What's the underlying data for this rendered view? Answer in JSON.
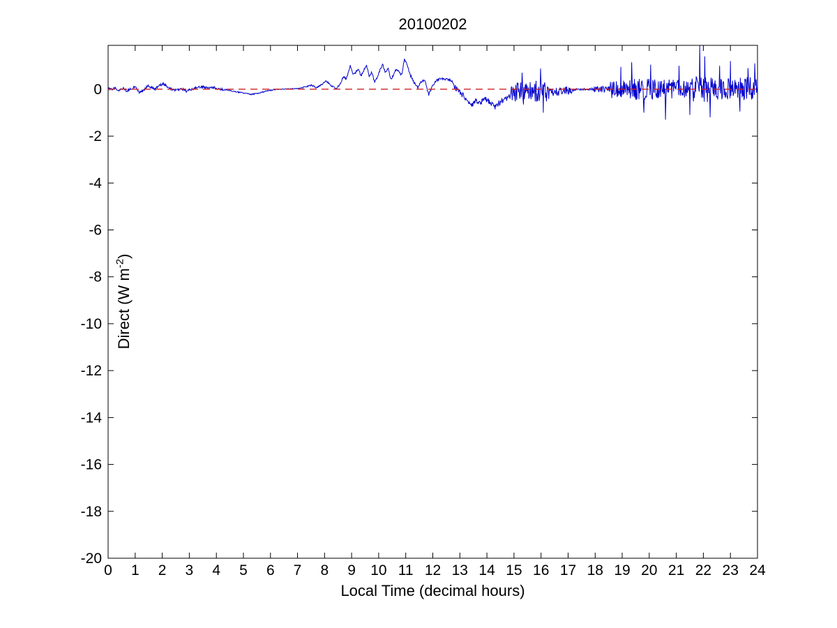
{
  "figure": {
    "background": "#ffffff"
  },
  "chart_data": {
    "type": "line",
    "title": "20100202",
    "xlabel": "Local Time (decimal hours)",
    "ylabel": "Direct (W m^-2)",
    "ylabel_parts": {
      "prefix": "Direct (W m",
      "superscript": "-2",
      "suffix": ")"
    },
    "xlim": [
      0,
      24
    ],
    "ylim": [
      -20,
      1.87
    ],
    "xticks": [
      0,
      1,
      2,
      3,
      4,
      5,
      6,
      7,
      8,
      9,
      10,
      11,
      12,
      13,
      14,
      15,
      16,
      17,
      18,
      19,
      20,
      21,
      22,
      23,
      24
    ],
    "yticks": [
      0,
      -2,
      -4,
      -6,
      -8,
      -10,
      -12,
      -14,
      -16,
      -18,
      -20
    ],
    "grid": false,
    "axis_color": "#000000",
    "background_color": "#ffffff",
    "series": [
      {
        "name": "direct-irradiance",
        "color": "#0000CC",
        "style": "solid",
        "samples_per_hour": 60,
        "noise_seed": 20100202,
        "baseline_anchors": [
          [
            0,
            0.05
          ],
          [
            0.1,
            -0.02
          ],
          [
            0.25,
            0.06
          ],
          [
            0.4,
            -0.06
          ],
          [
            0.55,
            0.04
          ],
          [
            0.7,
            -0.08
          ],
          [
            0.85,
            0.02
          ],
          [
            1,
            0.12
          ],
          [
            1.15,
            -0.12
          ],
          [
            1.3,
            -0.08
          ],
          [
            1.45,
            0.15
          ],
          [
            1.6,
            0.08
          ],
          [
            1.75,
            0.02
          ],
          [
            1.9,
            0.18
          ],
          [
            2.05,
            0.22
          ],
          [
            2.2,
            0.1
          ],
          [
            2.35,
            0
          ],
          [
            2.5,
            -0.05
          ],
          [
            2.7,
            0.02
          ],
          [
            2.9,
            -0.08
          ],
          [
            3.1,
            0
          ],
          [
            3.3,
            0.08
          ],
          [
            3.5,
            0.1
          ],
          [
            3.7,
            0.04
          ],
          [
            3.9,
            0.08
          ],
          [
            4.1,
            0
          ],
          [
            4.4,
            -0.03
          ],
          [
            4.7,
            -0.1
          ],
          [
            5,
            -0.16
          ],
          [
            5.3,
            -0.22
          ],
          [
            5.6,
            -0.16
          ],
          [
            5.9,
            -0.06
          ],
          [
            6.2,
            -0.01
          ],
          [
            6.6,
            0.01
          ],
          [
            7,
            0.03
          ],
          [
            7.3,
            0.1
          ],
          [
            7.5,
            0.17
          ],
          [
            7.7,
            0.07
          ],
          [
            7.9,
            0.2
          ],
          [
            8.05,
            0.37
          ],
          [
            8.25,
            0.14
          ],
          [
            8.45,
            0.02
          ],
          [
            8.6,
            0.3
          ],
          [
            8.7,
            0.55
          ],
          [
            8.8,
            0.42
          ],
          [
            8.95,
            1
          ],
          [
            9.05,
            0.6
          ],
          [
            9.15,
            0.72
          ],
          [
            9.25,
            0.88
          ],
          [
            9.35,
            0.55
          ],
          [
            9.45,
            0.8
          ],
          [
            9.55,
            1.02
          ],
          [
            9.65,
            0.55
          ],
          [
            9.75,
            0.72
          ],
          [
            9.85,
            0.3
          ],
          [
            9.95,
            0.5
          ],
          [
            10.05,
            0.82
          ],
          [
            10.15,
            1.05
          ],
          [
            10.25,
            0.68
          ],
          [
            10.35,
            0.92
          ],
          [
            10.45,
            0.42
          ],
          [
            10.55,
            0.6
          ],
          [
            10.65,
            0.88
          ],
          [
            10.75,
            0.72
          ],
          [
            10.85,
            0.6
          ],
          [
            10.95,
            1.3
          ],
          [
            11.05,
            1.05
          ],
          [
            11.15,
            0.65
          ],
          [
            11.3,
            0.3
          ],
          [
            11.45,
            0.05
          ],
          [
            11.55,
            0.3
          ],
          [
            11.7,
            0.4
          ],
          [
            11.85,
            -0.25
          ],
          [
            11.95,
            0.05
          ],
          [
            12.1,
            0.35
          ],
          [
            12.3,
            0.45
          ],
          [
            12.5,
            0.42
          ],
          [
            12.7,
            0.35
          ],
          [
            12.85,
            0.05
          ],
          [
            13,
            -0.15
          ],
          [
            13.15,
            -0.3
          ],
          [
            13.3,
            -0.5
          ],
          [
            13.45,
            -0.65
          ],
          [
            13.6,
            -0.45
          ],
          [
            13.75,
            -0.6
          ],
          [
            13.9,
            -0.4
          ],
          [
            14.1,
            -0.55
          ],
          [
            14.3,
            -0.75
          ],
          [
            14.5,
            -0.55
          ],
          [
            14.7,
            -0.4
          ],
          [
            14.9,
            -0.25
          ],
          [
            15.1,
            -0.1
          ],
          [
            15.5,
            -0.05
          ],
          [
            16,
            -0.05
          ],
          [
            16.5,
            -0.12
          ],
          [
            17,
            -0.05
          ],
          [
            17.5,
            0
          ],
          [
            18,
            0
          ],
          [
            19,
            0
          ],
          [
            20,
            0
          ],
          [
            21,
            0
          ],
          [
            22,
            0
          ],
          [
            23,
            0
          ],
          [
            23.9,
            0.05
          ],
          [
            24,
            0.3
          ]
        ],
        "noise_segments": [
          [
            0,
            4.3,
            0.05
          ],
          [
            4.3,
            6.2,
            0.025
          ],
          [
            6.2,
            7.2,
            0.015
          ],
          [
            7.2,
            8.5,
            0.03
          ],
          [
            8.5,
            12.8,
            0.05
          ],
          [
            12.8,
            14.9,
            0.12
          ],
          [
            14.9,
            15.75,
            0.4
          ],
          [
            15.75,
            16.35,
            0.5
          ],
          [
            16.35,
            17.15,
            0.18
          ],
          [
            17.15,
            17.95,
            0.05
          ],
          [
            17.95,
            18.55,
            0.13
          ],
          [
            18.55,
            19.3,
            0.4
          ],
          [
            19.3,
            20.4,
            0.45
          ],
          [
            20.4,
            21.35,
            0.42
          ],
          [
            21.35,
            22.4,
            0.55
          ],
          [
            22.4,
            23.3,
            0.45
          ],
          [
            23.3,
            24.01,
            0.5
          ]
        ],
        "spikes": [
          [
            15.3,
            0.7
          ],
          [
            15.35,
            -0.65
          ],
          [
            15.98,
            0.88
          ],
          [
            16.08,
            -1
          ],
          [
            18.95,
            0.95
          ],
          [
            19.35,
            1.15
          ],
          [
            19.8,
            -1
          ],
          [
            20.05,
            1.05
          ],
          [
            20.6,
            -1.3
          ],
          [
            21.1,
            1
          ],
          [
            21.5,
            -1.1
          ],
          [
            21.87,
            2.1
          ],
          [
            22.05,
            1.4
          ],
          [
            22.25,
            -1.2
          ],
          [
            22.6,
            1
          ],
          [
            23,
            1.2
          ],
          [
            23.35,
            -0.95
          ],
          [
            23.65,
            0.9
          ],
          [
            23.9,
            1.1
          ]
        ]
      },
      {
        "name": "zero-reference-line",
        "color": "#CC2222",
        "style": "dashed",
        "y": 0
      }
    ]
  }
}
